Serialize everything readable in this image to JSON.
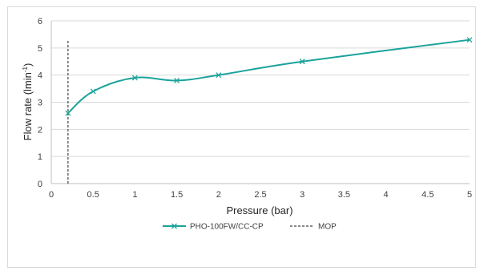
{
  "chart_data": {
    "type": "line",
    "xlabel": "Pressure (bar)",
    "ylabel_main": "Flow rate (lmin",
    "ylabel_sup": "-1",
    "ylabel_end": ")",
    "xlim": [
      0,
      5
    ],
    "ylim": [
      0,
      6
    ],
    "xticks": [
      "0",
      "0.5",
      "1",
      "1.5",
      "2",
      "2.5",
      "3",
      "3.5",
      "4",
      "4.5",
      "5"
    ],
    "yticks": [
      "0",
      "1",
      "2",
      "3",
      "4",
      "5",
      "6"
    ],
    "grid": "horizontal",
    "legend_position": "bottom",
    "series": [
      {
        "name": "PHO-100FW/CC-CP",
        "color": "#1aa39a",
        "marker": "x",
        "smooth": true,
        "x": [
          0.2,
          0.5,
          1,
          1.5,
          2,
          3,
          5
        ],
        "y": [
          2.6,
          3.4,
          3.9,
          3.8,
          4.0,
          4.5,
          5.3
        ]
      }
    ],
    "reference_lines": [
      {
        "name": "MOP",
        "x": 0.2,
        "y_range": [
          0,
          5.3
        ],
        "color": "#404040",
        "style": "dashed"
      }
    ]
  }
}
